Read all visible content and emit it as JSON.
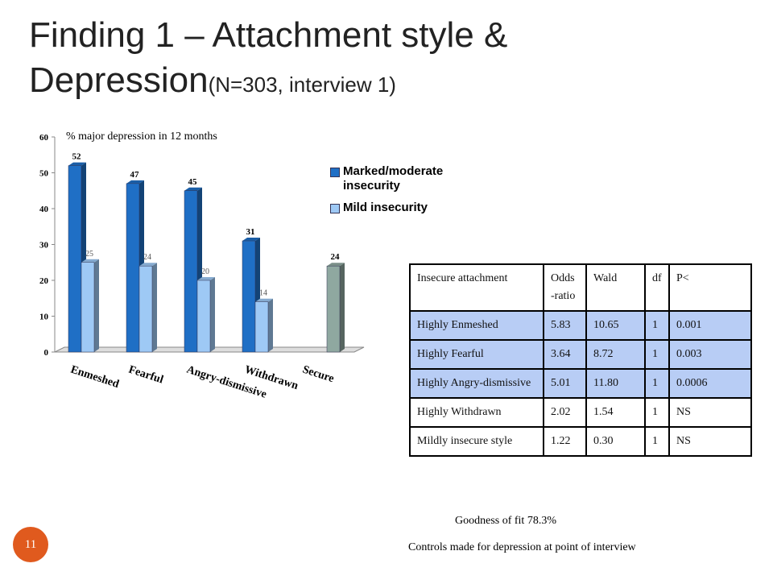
{
  "title": "Finding 1 – Attachment style & Depression",
  "title_note": "(N=303, interview 1)",
  "chart_data": {
    "type": "bar",
    "y_label": "% major depression in 12 months",
    "categories": [
      "Enmeshed",
      "Fearful",
      "Angry-dismissive",
      "Withdrawn",
      "Secure"
    ],
    "series": [
      {
        "name": "Marked/moderate insecurity",
        "color": "#1f6fc5",
        "values": [
          52,
          47,
          45,
          31,
          null
        ]
      },
      {
        "name": "Mild insecurity",
        "color": "#9ec9f5",
        "values": [
          25,
          24,
          20,
          14,
          null
        ]
      },
      {
        "color": "#8fa8a0",
        "values": [
          null,
          null,
          null,
          null,
          24
        ]
      }
    ],
    "ylim": [
      0,
      60
    ],
    "yticks": [
      0,
      10,
      20,
      30,
      40,
      50,
      60
    ]
  },
  "table": {
    "header": [
      "Insecure attachment",
      "Odds -ratio",
      "Wald",
      "df",
      "P<"
    ],
    "rows": [
      [
        "Highly Enmeshed",
        "5.83",
        "10.65",
        "1",
        "0.001"
      ],
      [
        "Highly Fearful",
        "3.64",
        "8.72",
        "1",
        "0.003"
      ],
      [
        "Highly Angry-dismissive",
        "5.01",
        "11.80",
        "1",
        "0.0006"
      ],
      [
        "Highly Withdrawn",
        "2.02",
        "1.54",
        "1",
        "NS"
      ],
      [
        "Mildly insecure style",
        "1.22",
        "0.30",
        "1",
        "NS"
      ]
    ]
  },
  "goodness_of_fit": "Goodness of fit 78.3%",
  "footnote": "Controls made for depression at point of interview",
  "slide_number": "11"
}
